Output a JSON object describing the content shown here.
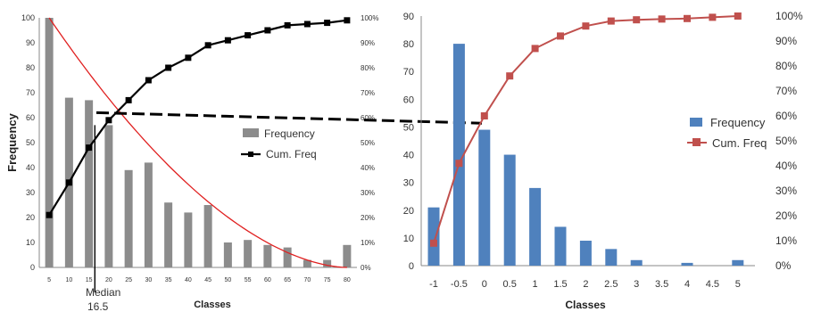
{
  "chart_data": [
    {
      "type": "bar",
      "title": "",
      "xlabel": "Classes",
      "ylabel": "Frequency",
      "ylim": [
        0,
        100
      ],
      "y2lim": [
        0,
        100
      ],
      "categories": [
        "5",
        "10",
        "15",
        "20",
        "25",
        "30",
        "35",
        "40",
        "45",
        "50",
        "55",
        "60",
        "65",
        "70",
        "75",
        "80"
      ],
      "y_ticks": [
        "0",
        "10",
        "20",
        "30",
        "40",
        "50",
        "60",
        "70",
        "80",
        "90",
        "100"
      ],
      "y2_ticks": [
        "0%",
        "10%",
        "20%",
        "30%",
        "40%",
        "50%",
        "60%",
        "70%",
        "80%",
        "90%",
        "100%"
      ],
      "series": [
        {
          "name": "Frequency",
          "type": "bar",
          "color": "#8c8c8c",
          "values": [
            100,
            68,
            67,
            57,
            39,
            42,
            26,
            22,
            25,
            10,
            11,
            9,
            8,
            3,
            3,
            9
          ]
        },
        {
          "name": "Cum. Freq",
          "type": "line",
          "axis": "right",
          "color": "#000000",
          "values": [
            21,
            34,
            48,
            59,
            67,
            75,
            80,
            84,
            89,
            91,
            93,
            95,
            97,
            97.5,
            98,
            99
          ]
        }
      ],
      "curve": {
        "color": "#e02020",
        "description_values": [
          100,
          0
        ]
      },
      "annotation": {
        "line1": "Median",
        "line2": "16.5",
        "x": 16.5
      },
      "legend_position": "center-right",
      "grid": false
    },
    {
      "type": "bar",
      "title": "",
      "xlabel": "Classes",
      "ylabel": "",
      "ylim": [
        0,
        90
      ],
      "y2lim": [
        0,
        100
      ],
      "categories": [
        "-1",
        "-0.5",
        "0",
        "0.5",
        "1",
        "1.5",
        "2",
        "2.5",
        "3",
        "3.5",
        "4",
        "4.5",
        "5"
      ],
      "y_ticks": [
        "0",
        "10",
        "20",
        "30",
        "40",
        "50",
        "60",
        "70",
        "80",
        "90"
      ],
      "y2_ticks": [
        "0%",
        "10%",
        "20%",
        "30%",
        "40%",
        "50%",
        "60%",
        "70%",
        "80%",
        "90%",
        "100%"
      ],
      "series": [
        {
          "name": "Frequency",
          "type": "bar",
          "color": "#4f81bd",
          "values": [
            21,
            80,
            49,
            40,
            28,
            14,
            9,
            6,
            2,
            0,
            1,
            0,
            2
          ]
        },
        {
          "name": "Cum. Freq",
          "type": "line",
          "axis": "right",
          "color": "#c0504d",
          "values": [
            9,
            41,
            60,
            76,
            87,
            92,
            96,
            98,
            98.5,
            98.8,
            99,
            99.5,
            100
          ]
        }
      ],
      "legend_position": "center-right",
      "grid": false
    }
  ],
  "connector": {
    "color": "#000000",
    "style": "dashed",
    "y_percent": 57
  }
}
